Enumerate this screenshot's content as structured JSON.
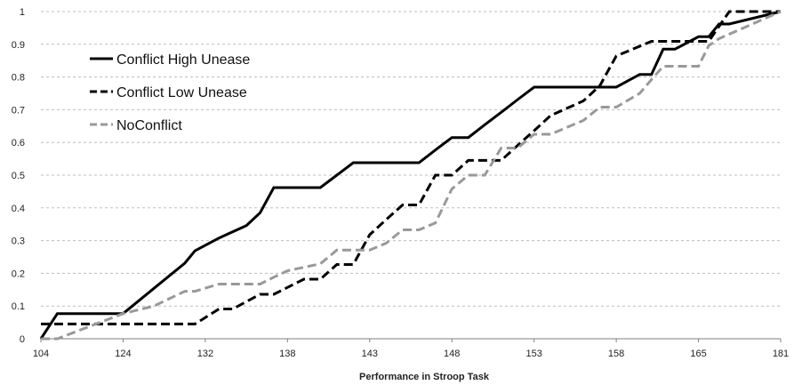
{
  "chart_data": {
    "type": "line",
    "title": "",
    "xlabel": "Performance in Stroop Task",
    "ylabel": "",
    "x_tick_labels": [
      "104",
      "124",
      "132",
      "138",
      "143",
      "148",
      "153",
      "158",
      "165",
      "181"
    ],
    "y_tick_labels": [
      "0",
      "0.1",
      "0.2",
      "0.3",
      "0.4",
      "0.5",
      "0.6",
      "0.7",
      "0.8",
      "0.9",
      "1"
    ],
    "ylim": [
      0,
      1
    ],
    "grid": true,
    "legend_position": "top-left",
    "series": [
      {
        "name": "Conflict High Unease",
        "color": "#000000",
        "dash": "solid",
        "x": [
          104,
          108,
          124,
          127,
          130,
          131,
          133,
          135,
          136,
          137,
          138,
          140,
          141,
          142,
          144,
          146,
          147,
          148,
          149,
          150,
          151,
          152,
          153,
          155,
          158,
          160,
          161,
          162,
          163,
          165,
          167,
          169,
          171,
          181
        ],
        "y": [
          0,
          0.077,
          0.077,
          0.154,
          0.231,
          0.269,
          0.308,
          0.346,
          0.385,
          0.462,
          0.462,
          0.462,
          0.5,
          0.538,
          0.538,
          0.538,
          0.577,
          0.615,
          0.615,
          0.654,
          0.692,
          0.731,
          0.769,
          0.769,
          0.769,
          0.808,
          0.808,
          0.885,
          0.885,
          0.923,
          0.923,
          0.962,
          0.962,
          1.0
        ]
      },
      {
        "name": "Conflict Low Unease",
        "color": "#000000",
        "dash": "dashed",
        "x": [
          104,
          128,
          131,
          133,
          134,
          136,
          137,
          139,
          140,
          141,
          142,
          143,
          144,
          145,
          146,
          147,
          148,
          149,
          151,
          152,
          153,
          154,
          156,
          157,
          158,
          161,
          162,
          165,
          167,
          169,
          171,
          181
        ],
        "y": [
          0.045,
          0.045,
          0.045,
          0.091,
          0.091,
          0.136,
          0.136,
          0.182,
          0.182,
          0.227,
          0.227,
          0.318,
          0.364,
          0.409,
          0.409,
          0.5,
          0.5,
          0.545,
          0.545,
          0.591,
          0.636,
          0.682,
          0.727,
          0.773,
          0.864,
          0.909,
          0.909,
          0.909,
          0.909,
          0.955,
          1.0,
          1.0
        ]
      },
      {
        "name": "NoConflict",
        "color": "#999999",
        "dash": "dashed",
        "x": [
          104,
          108,
          124,
          127,
          130,
          131,
          133,
          134,
          136,
          137,
          138,
          140,
          141,
          142,
          143,
          144,
          145,
          146,
          147,
          148,
          149,
          150,
          151,
          152,
          153,
          154,
          156,
          157,
          158,
          160,
          161,
          162,
          165,
          167,
          169,
          181
        ],
        "y": [
          0,
          0,
          0.077,
          0.1,
          0.145,
          0.145,
          0.167,
          0.167,
          0.167,
          0.188,
          0.208,
          0.229,
          0.271,
          0.271,
          0.271,
          0.292,
          0.333,
          0.333,
          0.354,
          0.458,
          0.5,
          0.5,
          0.583,
          0.583,
          0.625,
          0.625,
          0.667,
          0.708,
          0.708,
          0.75,
          0.792,
          0.833,
          0.833,
          0.896,
          0.917,
          1.0
        ]
      }
    ]
  }
}
